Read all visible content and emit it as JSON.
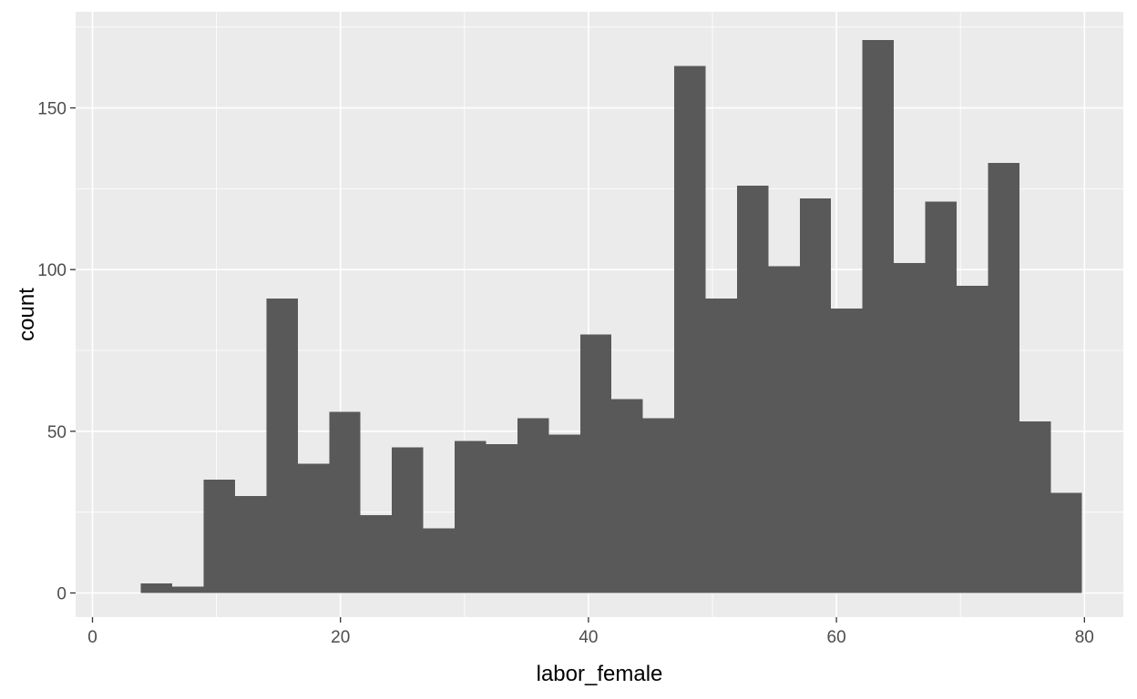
{
  "chart_data": {
    "type": "bar",
    "title": "",
    "xlabel": "labor_female",
    "ylabel": "count",
    "xlim": [
      0,
      80
    ],
    "ylim": [
      0,
      170
    ],
    "x_ticks": [
      0,
      20,
      40,
      60,
      80
    ],
    "y_ticks": [
      0,
      50,
      100,
      150
    ],
    "grid": true,
    "bin_width": 2.53,
    "bins": [
      {
        "start": 3.91,
        "end": 6.44,
        "value": 3
      },
      {
        "start": 6.44,
        "end": 8.97,
        "value": 2
      },
      {
        "start": 8.97,
        "end": 11.5,
        "value": 35
      },
      {
        "start": 11.5,
        "end": 14.03,
        "value": 30
      },
      {
        "start": 14.03,
        "end": 16.56,
        "value": 91
      },
      {
        "start": 16.56,
        "end": 19.09,
        "value": 40
      },
      {
        "start": 19.09,
        "end": 21.62,
        "value": 56
      },
      {
        "start": 21.62,
        "end": 24.15,
        "value": 24
      },
      {
        "start": 24.15,
        "end": 26.68,
        "value": 45
      },
      {
        "start": 26.68,
        "end": 29.21,
        "value": 20
      },
      {
        "start": 29.21,
        "end": 31.74,
        "value": 47
      },
      {
        "start": 31.74,
        "end": 34.27,
        "value": 46
      },
      {
        "start": 34.27,
        "end": 36.8,
        "value": 54
      },
      {
        "start": 36.8,
        "end": 39.33,
        "value": 49
      },
      {
        "start": 39.33,
        "end": 41.86,
        "value": 80
      },
      {
        "start": 41.86,
        "end": 44.39,
        "value": 60
      },
      {
        "start": 44.39,
        "end": 46.92,
        "value": 54
      },
      {
        "start": 46.92,
        "end": 49.45,
        "value": 163
      },
      {
        "start": 49.45,
        "end": 51.98,
        "value": 91
      },
      {
        "start": 51.98,
        "end": 54.51,
        "value": 126
      },
      {
        "start": 54.51,
        "end": 57.04,
        "value": 101
      },
      {
        "start": 57.04,
        "end": 59.57,
        "value": 122
      },
      {
        "start": 59.57,
        "end": 62.1,
        "value": 88
      },
      {
        "start": 62.1,
        "end": 64.63,
        "value": 171
      },
      {
        "start": 64.63,
        "end": 67.16,
        "value": 102
      },
      {
        "start": 67.16,
        "end": 69.69,
        "value": 121
      },
      {
        "start": 69.69,
        "end": 72.22,
        "value": 95
      },
      {
        "start": 72.22,
        "end": 74.75,
        "value": 133
      },
      {
        "start": 74.75,
        "end": 77.28,
        "value": 53
      },
      {
        "start": 77.28,
        "end": 79.81,
        "value": 31
      }
    ],
    "colors": {
      "panel": "#EBEBEB",
      "grid": "#FFFFFF",
      "bar": "#595959",
      "tick": "#4D4D4D",
      "text": "#000000"
    }
  }
}
